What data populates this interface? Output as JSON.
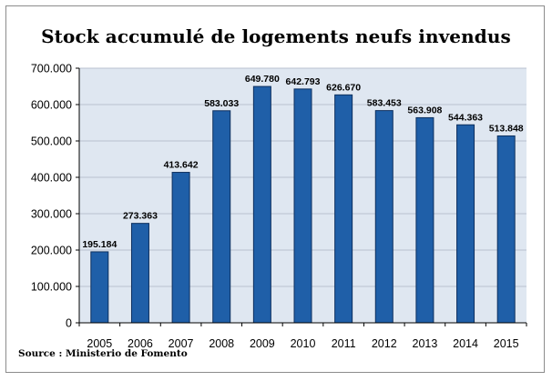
{
  "chart_data": {
    "type": "bar",
    "title": "Stock accumulé de logements neufs invendus",
    "source": "Source : Ministerio de Fomento",
    "categories": [
      "2005",
      "2006",
      "2007",
      "2008",
      "2009",
      "2010",
      "2011",
      "2012",
      "2013",
      "2014",
      "2015"
    ],
    "values": [
      195184,
      273363,
      413642,
      583033,
      649780,
      642793,
      626670,
      583453,
      563908,
      544363,
      513848
    ],
    "data_labels": [
      "195.184",
      "273.363",
      "413.642",
      "583.033",
      "649.780",
      "642.793",
      "626.670",
      "583.453",
      "563.908",
      "544.363",
      "513.848"
    ],
    "y_ticks": [
      0,
      100000,
      200000,
      300000,
      400000,
      500000,
      600000,
      700000
    ],
    "y_tick_labels": [
      "0",
      "100.000",
      "200.000",
      "300.000",
      "400.000",
      "500.000",
      "600.000",
      "700.000"
    ],
    "ylim": [
      0,
      700000
    ],
    "grid": true,
    "legend": "none",
    "colors": {
      "bar": "#1f5fa8",
      "bar_edge": "#0d2f5e",
      "plot_bg": "#dfe7f1",
      "grid": "#b9c2cf"
    }
  }
}
